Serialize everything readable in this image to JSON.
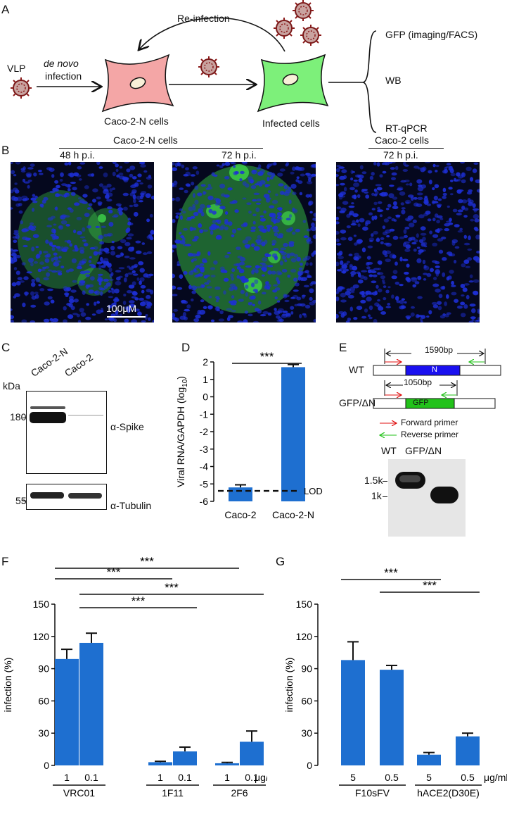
{
  "panel_labels": {
    "a": "A",
    "b": "B",
    "c": "C",
    "d": "D",
    "e": "E",
    "f": "F",
    "g": "G"
  },
  "panel_a": {
    "vlp": "VLP",
    "de_novo": "de novo",
    "infection": "infection",
    "reinfection": "Re-infection",
    "caco2n_cells": "Caco-2-N cells",
    "infected_cells": "Infected cells",
    "readouts": [
      "GFP (imaging/FACS)",
      "WB",
      "RT-qPCR"
    ],
    "colors": {
      "caco2n": "#f4a6a6",
      "infected": "#7df07a",
      "virus": "#8b1a1a"
    }
  },
  "panel_b": {
    "group1": "Caco-2-N cells",
    "group2": "Caco-2 cells",
    "t48": "48 h p.i.",
    "t72a": "72 h p.i.",
    "t72b": "72 h p.i.",
    "scale": "100μM",
    "colors": {
      "nuclei": "#1d2fd6",
      "gfp": "#3fd44a"
    }
  },
  "panel_c": {
    "lanes": [
      "Caco-2-N",
      "Caco-2"
    ],
    "kda": "kDa",
    "marker180": "180",
    "marker55": "55",
    "spike": "α-Spike",
    "tubulin": "α-Tubulin"
  },
  "panel_e": {
    "wt": "WT",
    "gfpdn": "GFP/ΔN",
    "n": "N",
    "gfp": "GFP",
    "bp1590": "1590bp",
    "bp1050": "1050bp",
    "fwd": "Forward primer",
    "rev": "Reverse primer",
    "gel_wt": "WT",
    "gel_gfp": "GFP/ΔN",
    "m15k": "1.5k",
    "m1k": "1k",
    "colors": {
      "n": "#1a10f0",
      "gfp": "#22c21a",
      "fwd": "#e01010",
      "rev": "#22c21a"
    }
  },
  "chart_data": [
    {
      "id": "D",
      "type": "bar",
      "categories": [
        "Caco-2",
        "Caco-2-N"
      ],
      "values": [
        -5.2,
        1.7
      ],
      "errors": [
        0.15,
        0.15
      ],
      "ylabel": "Viral RNA/GAPDH (log10)",
      "ylim": [
        -6,
        2
      ],
      "yticks": [
        -6,
        -5,
        -4,
        -3,
        -2,
        -1,
        0,
        1,
        2
      ],
      "lod": {
        "value": -5.4,
        "label": "LOD"
      },
      "significance": [
        {
          "from": 0,
          "to": 1,
          "label": "***"
        }
      ],
      "color": "#1e6fd0"
    },
    {
      "id": "F",
      "type": "bar",
      "groups": [
        {
          "name": "VRC01",
          "doses": [
            "1",
            "0.1"
          ],
          "values": [
            99,
            114
          ],
          "errors": [
            9,
            9
          ]
        },
        {
          "name": "1F11",
          "doses": [
            "1",
            "0.1"
          ],
          "values": [
            3,
            13
          ],
          "errors": [
            0.8,
            4
          ]
        },
        {
          "name": "2F6",
          "doses": [
            "1",
            "0.1"
          ],
          "values": [
            2,
            22
          ],
          "errors": [
            0.8,
            10
          ]
        }
      ],
      "unit": "μg/ml",
      "ylabel": "infection (%)",
      "ylim": [
        0,
        150
      ],
      "yticks": [
        0,
        30,
        60,
        90,
        120,
        150
      ],
      "significance": [
        {
          "from": 0,
          "to": 4,
          "label": "***"
        },
        {
          "from": 0,
          "to": 2,
          "label": "***"
        },
        {
          "from": 1,
          "to": 5,
          "label": "***"
        },
        {
          "from": 1,
          "to": 3,
          "label": "***"
        }
      ],
      "color": "#1e6fd0"
    },
    {
      "id": "G",
      "type": "bar",
      "groups": [
        {
          "name": "F10sFV",
          "doses": [
            "5",
            "0.5"
          ],
          "values": [
            98,
            89
          ],
          "errors": [
            17,
            4
          ]
        },
        {
          "name": "hACE2(D30E)",
          "doses": [
            "5",
            "0.5"
          ],
          "values": [
            10,
            27
          ],
          "errors": [
            2,
            3
          ]
        }
      ],
      "unit": "μg/ml",
      "ylabel": "infection (%)",
      "ylim": [
        0,
        150
      ],
      "yticks": [
        0,
        30,
        60,
        90,
        120,
        150
      ],
      "significance": [
        {
          "from": 0,
          "to": 2,
          "label": "***"
        },
        {
          "from": 1,
          "to": 3,
          "label": "***"
        }
      ],
      "color": "#1e6fd0"
    }
  ]
}
